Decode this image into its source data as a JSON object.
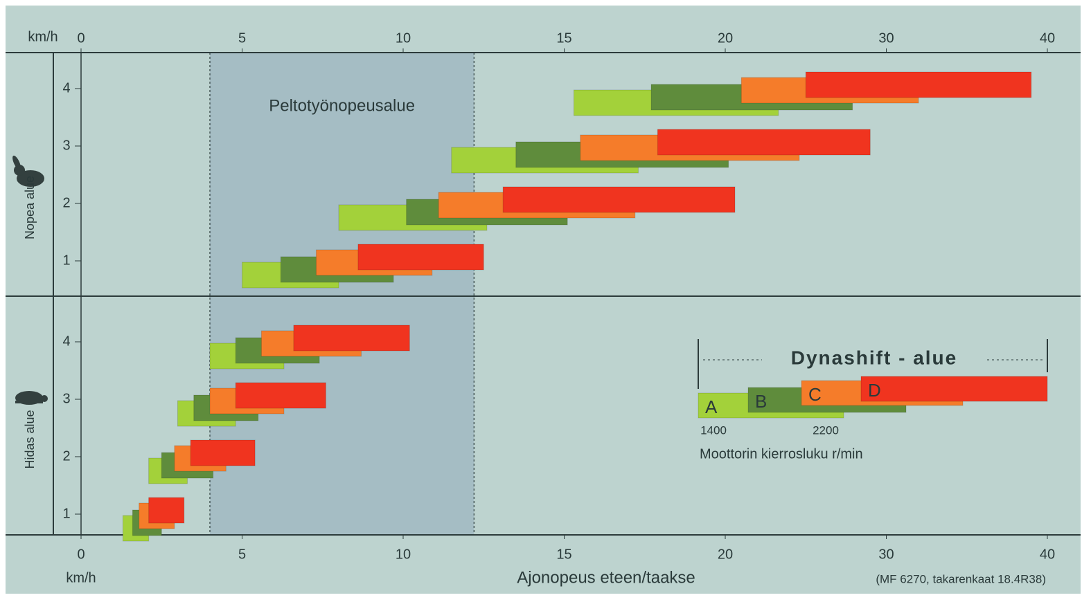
{
  "chart_data": {
    "type": "range-bar",
    "x_unit_top": "km/h",
    "x_unit_bottom": "km/h",
    "xlabel": "Ajonopeus eteen/taakse",
    "note": "(MF 6270, takarenkaat 18.4R38)",
    "xlim": [
      0,
      40
    ],
    "xticks": [
      0,
      5,
      10,
      15,
      20,
      30,
      40
    ],
    "band": {
      "label": "Peltotyönopeusalue",
      "range": [
        4,
        12.2
      ]
    },
    "legend": {
      "title": "Dynashift - alue",
      "rpm_labels": [
        "1400",
        "2200"
      ],
      "rpm_title": "Moottorin kierrosluku r/min"
    },
    "groups": [
      {
        "label": "Nopea alue",
        "categories": [
          "4",
          "3",
          "2",
          "1"
        ],
        "series": [
          {
            "name": "A",
            "color": "#a3d13a",
            "start": [
              15.3,
              11.5,
              8.0,
              5.0
            ],
            "end": [
              23.3,
              17.3,
              12.6,
              8.0
            ]
          },
          {
            "name": "B",
            "color": "#5f8c3c",
            "start": [
              17.7,
              13.5,
              10.1,
              6.2
            ],
            "end": [
              27.9,
              20.2,
              15.1,
              9.7
            ]
          },
          {
            "name": "C",
            "color": "#f57c2a",
            "start": [
              21.0,
              15.5,
              11.1,
              7.3
            ],
            "end": [
              32.0,
              24.6,
              17.2,
              10.9
            ]
          },
          {
            "name": "D",
            "color": "#f0341f",
            "start": [
              25.0,
              17.9,
              13.1,
              8.6
            ],
            "end": [
              39.0,
              29.0,
              20.6,
              12.5
            ]
          }
        ]
      },
      {
        "label": "Hidas alue",
        "categories": [
          "4",
          "3",
          "2",
          "1"
        ],
        "series": [
          {
            "name": "A",
            "color": "#a3d13a",
            "start": [
              4.0,
              3.0,
              2.1,
              1.3
            ],
            "end": [
              6.3,
              4.8,
              3.3,
              2.1
            ]
          },
          {
            "name": "B",
            "color": "#5f8c3c",
            "start": [
              4.8,
              3.5,
              2.5,
              1.6
            ],
            "end": [
              7.4,
              5.5,
              4.1,
              2.5
            ]
          },
          {
            "name": "C",
            "color": "#f57c2a",
            "start": [
              5.6,
              4.0,
              2.9,
              1.8
            ],
            "end": [
              8.7,
              6.3,
              4.5,
              2.9
            ]
          },
          {
            "name": "D",
            "color": "#f0341f",
            "start": [
              6.6,
              4.8,
              3.4,
              2.1
            ],
            "end": [
              10.2,
              7.6,
              5.4,
              3.2
            ]
          }
        ]
      }
    ]
  }
}
